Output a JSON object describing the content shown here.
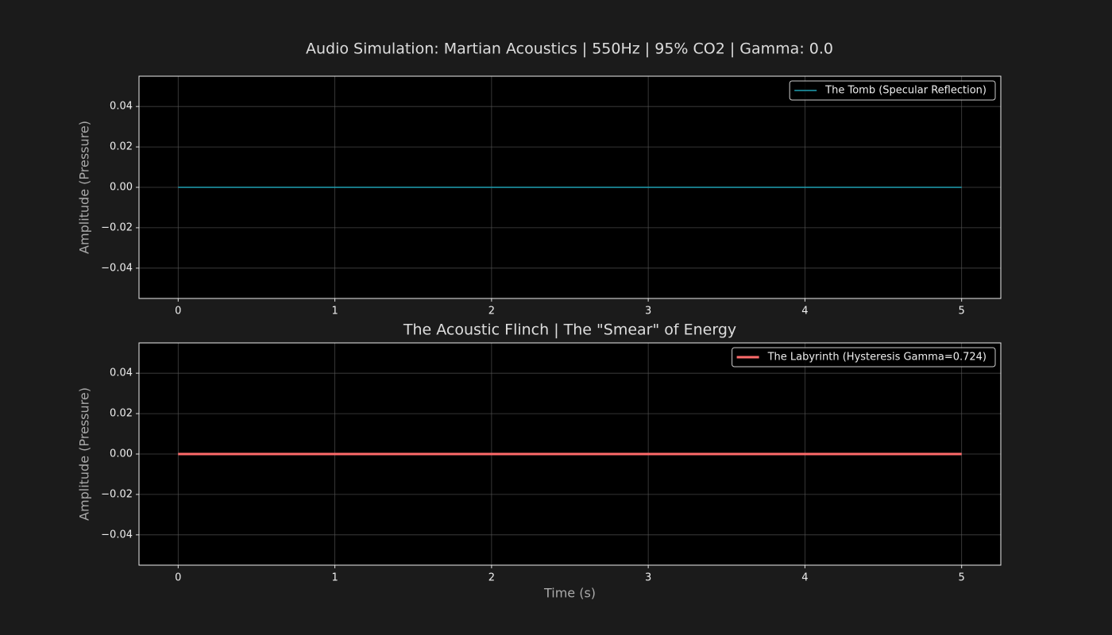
{
  "title": "Audio Simulation: Martian Acoustics | 550Hz | 95% CO2 | Gamma: 0.0",
  "chart_data": [
    {
      "type": "line",
      "ylabel": "Amplitude (Pressure)",
      "x": [
        0,
        1,
        2,
        3,
        4,
        5
      ],
      "series": [
        {
          "name": "The Tomb (Specular Reflection)",
          "color": "#1f9fb2",
          "values": [
            0,
            0,
            0,
            0,
            0,
            0
          ]
        }
      ],
      "xlim": [
        -0.25,
        5.25
      ],
      "xticks": [
        0,
        1,
        2,
        3,
        4,
        5
      ],
      "ylim": [
        -0.055,
        0.055
      ],
      "yticks": [
        {
          "value": -0.04,
          "label": "−0.04"
        },
        {
          "value": -0.02,
          "label": "−0.02"
        },
        {
          "value": 0,
          "label": "0.00"
        },
        0.02,
        0.04
      ],
      "grid": true,
      "legend": "upper-right"
    },
    {
      "type": "line",
      "title": "The Acoustic Flinch | The \"Smear\" of Energy",
      "xlabel": "Time (s)",
      "ylabel": "Amplitude (Pressure)",
      "x": [
        0,
        1,
        2,
        3,
        4,
        5
      ],
      "series": [
        {
          "name": "The Labyrinth (Hysteresis Gamma=0.724)",
          "color": "#ff6b6b",
          "values": [
            0,
            0,
            0,
            0,
            0,
            0
          ]
        }
      ],
      "xlim": [
        -0.25,
        5.25
      ],
      "xticks": [
        0,
        1,
        2,
        3,
        4,
        5
      ],
      "ylim": [
        -0.055,
        0.055
      ],
      "yticks": [
        {
          "value": -0.04,
          "label": "−0.04"
        },
        {
          "value": -0.02,
          "label": "−0.02"
        },
        {
          "value": 0,
          "label": "0.00"
        },
        0.02,
        0.04
      ],
      "grid": true,
      "legend": "upper-right"
    }
  ]
}
